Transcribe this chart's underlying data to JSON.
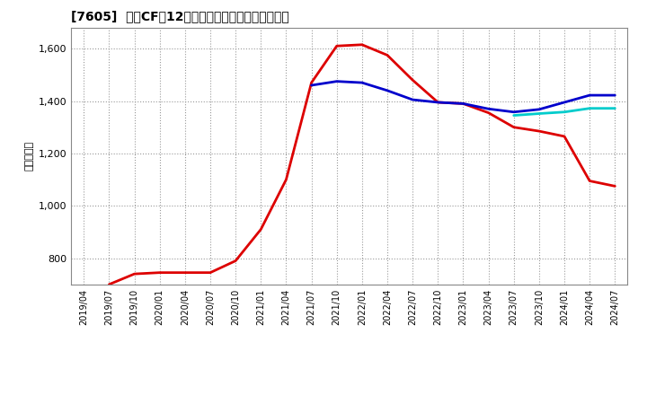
{
  "title": "[7605]  営業CFだ12か月移動合計の標準偏差の推移",
  "ylabel": "（百万円）",
  "ylim": [
    700,
    1680
  ],
  "yticks": [
    800,
    1000,
    1200,
    1400,
    1600
  ],
  "ytick_labels": [
    "800",
    "1,000",
    "1,200",
    "1,400",
    "1,600"
  ],
  "background_color": "#ffffff",
  "plot_bg_color": "#ffffff",
  "grid_color": "#999999",
  "series": {
    "3year": {
      "color": "#dd0000",
      "x": [
        "2019/07",
        "2019/10",
        "2020/01",
        "2020/04",
        "2020/07",
        "2020/10",
        "2021/01",
        "2021/04",
        "2021/07",
        "2021/10",
        "2022/01",
        "2022/04",
        "2022/07",
        "2022/10",
        "2023/01",
        "2023/04",
        "2023/07",
        "2023/10",
        "2024/01",
        "2024/04",
        "2024/07"
      ],
      "y": [
        700,
        740,
        745,
        745,
        745,
        790,
        910,
        1100,
        1470,
        1610,
        1615,
        1575,
        1480,
        1395,
        1390,
        1355,
        1300,
        1285,
        1265,
        1095,
        1075
      ]
    },
    "5year": {
      "color": "#0000cc",
      "x": [
        "2021/07",
        "2021/10",
        "2022/01",
        "2022/04",
        "2022/07",
        "2022/10",
        "2023/01",
        "2023/04",
        "2023/07",
        "2023/10",
        "2024/01",
        "2024/04",
        "2024/07"
      ],
      "y": [
        1460,
        1475,
        1470,
        1440,
        1405,
        1395,
        1390,
        1370,
        1358,
        1368,
        1395,
        1422,
        1422
      ]
    },
    "7year": {
      "color": "#00cccc",
      "x": [
        "2023/07",
        "2023/10",
        "2024/01",
        "2024/04",
        "2024/07"
      ],
      "y": [
        1345,
        1352,
        1358,
        1372,
        1372
      ]
    },
    "10year": {
      "color": "#006600",
      "x": [],
      "y": []
    }
  },
  "x_tick_labels": [
    "2019/04",
    "2019/07",
    "2019/10",
    "2020/01",
    "2020/04",
    "2020/07",
    "2020/10",
    "2021/01",
    "2021/04",
    "2021/07",
    "2021/10",
    "2022/01",
    "2022/04",
    "2022/07",
    "2022/10",
    "2023/01",
    "2023/04",
    "2023/07",
    "2023/10",
    "2024/01",
    "2024/04",
    "2024/07"
  ]
}
